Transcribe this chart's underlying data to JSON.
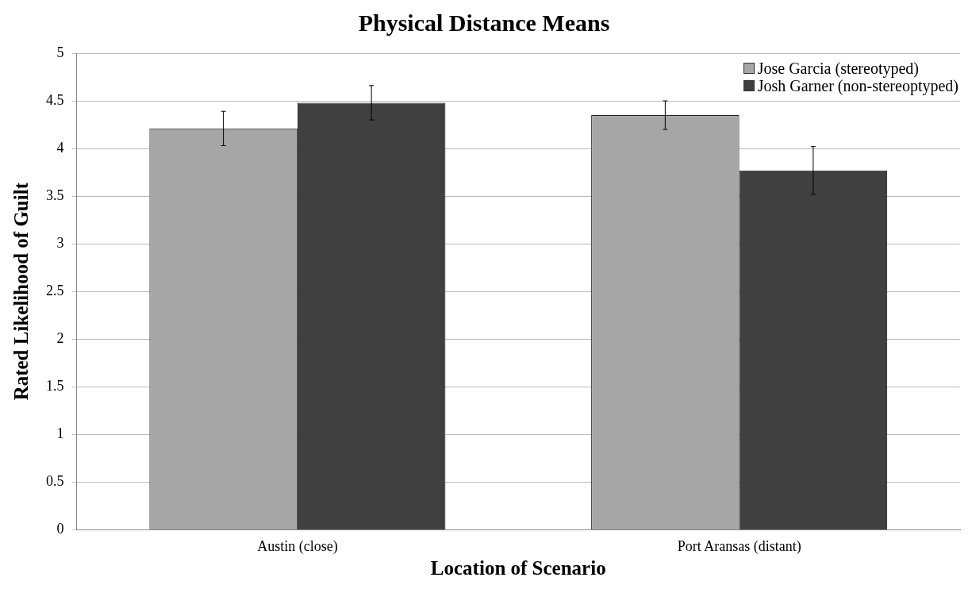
{
  "chart_data": {
    "type": "bar",
    "title": "Physical Distance Means",
    "xlabel": "Location of Scenario",
    "ylabel": "Rated Likelihood of Guilt",
    "categories": [
      "Austin (close)",
      "Port Aransas (distant)"
    ],
    "series": [
      {
        "name": "Jose Garcia (stereotyped)",
        "color": "#a6a6a6",
        "values": [
          4.21,
          4.35
        ],
        "errors": [
          0.18,
          0.15
        ]
      },
      {
        "name": "Josh Garner (non-stereoptyped)",
        "color": "#404040",
        "values": [
          4.48,
          3.77
        ],
        "errors": [
          0.18,
          0.25
        ]
      }
    ],
    "ylim": [
      0,
      5
    ],
    "yticks": [
      0,
      0.5,
      1,
      1.5,
      2,
      2.5,
      3,
      3.5,
      4,
      4.5,
      5
    ],
    "grid": "y",
    "legend": "top right"
  }
}
